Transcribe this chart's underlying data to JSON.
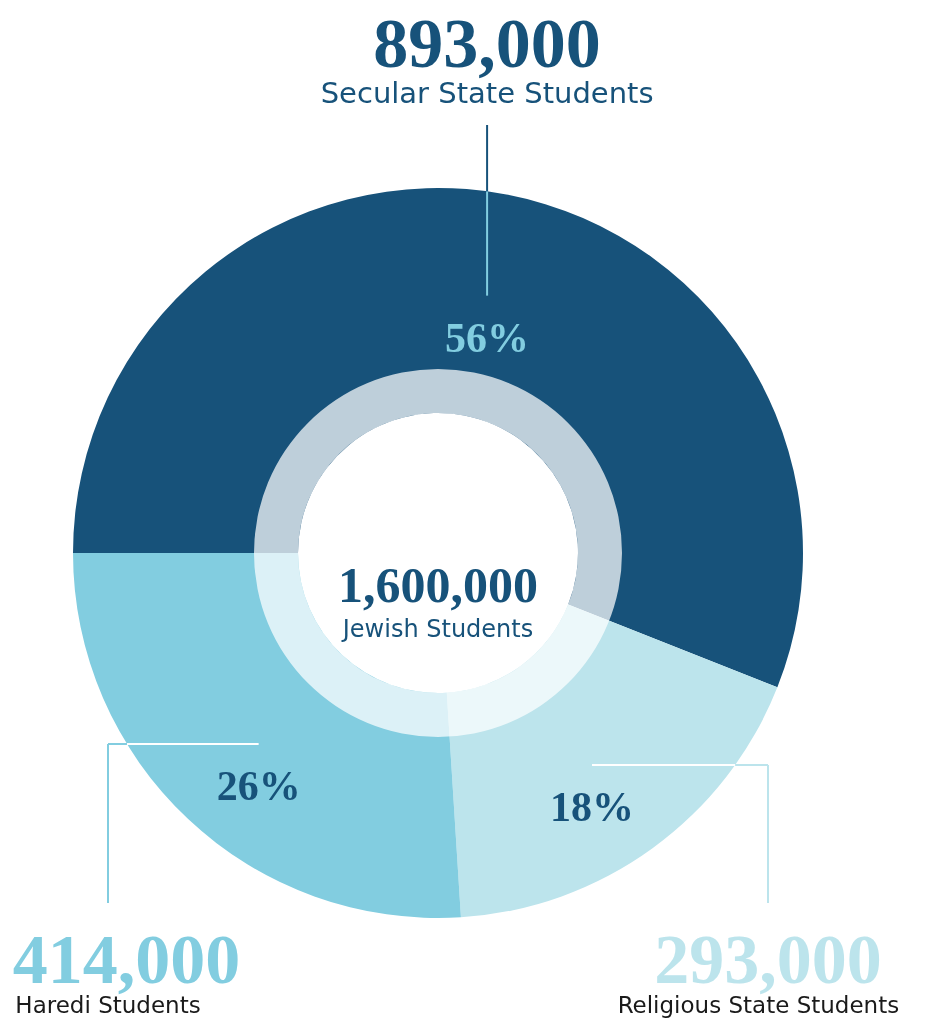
{
  "chart_data": {
    "type": "donut",
    "categories": [
      "Secular State Students",
      "Religious State Students",
      "Haredi Students"
    ],
    "values": [
      56,
      18,
      26
    ],
    "colors": [
      "#17527a",
      "#bce4ec",
      "#82cde0"
    ],
    "value_labels": [
      "56%",
      "18%",
      "26%"
    ],
    "annotations": [
      {
        "text": "893,000",
        "x": "Secular State Students"
      },
      {
        "text": "293,000",
        "x": "Religious State Students"
      },
      {
        "text": "414,000",
        "x": "Haredi Students"
      },
      "1,600,000",
      "Jewish Students"
    ]
  }
}
